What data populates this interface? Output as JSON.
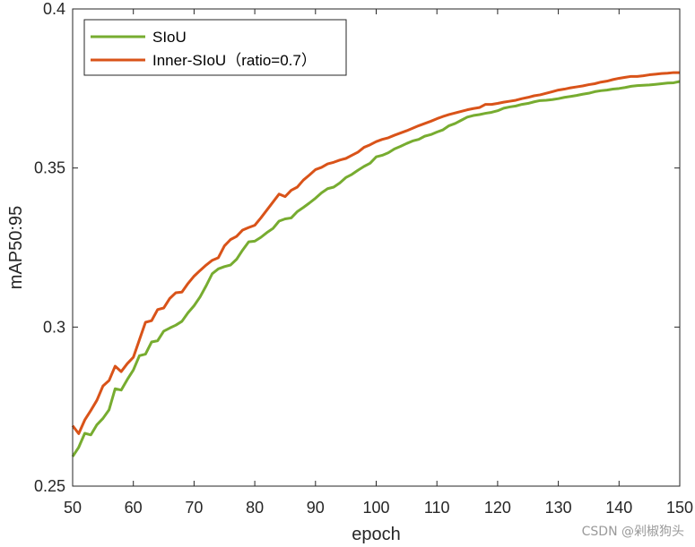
{
  "chart_data": {
    "type": "line",
    "title": "",
    "xlabel": "epoch",
    "ylabel": "mAP50:95",
    "xlim": [
      50,
      150
    ],
    "ylim": [
      0.25,
      0.4
    ],
    "xticks": [
      "50",
      "60",
      "70",
      "80",
      "90",
      "100",
      "110",
      "120",
      "130",
      "140",
      "150"
    ],
    "yticks": [
      "0.25",
      "0.3",
      "0.35",
      "0.4"
    ],
    "legend_position": "top-left",
    "grid": false,
    "x": [
      50,
      51,
      52,
      53,
      54,
      55,
      56,
      57,
      58,
      59,
      60,
      61,
      62,
      63,
      64,
      65,
      66,
      67,
      68,
      69,
      70,
      71,
      72,
      73,
      74,
      75,
      76,
      77,
      78,
      79,
      80,
      81,
      82,
      83,
      84,
      85,
      86,
      87,
      88,
      89,
      90,
      91,
      92,
      93,
      94,
      95,
      96,
      97,
      98,
      99,
      100,
      101,
      102,
      103,
      104,
      105,
      106,
      107,
      108,
      109,
      110,
      111,
      112,
      113,
      114,
      115,
      116,
      117,
      118,
      119,
      120,
      121,
      122,
      123,
      124,
      125,
      126,
      127,
      128,
      129,
      130,
      131,
      132,
      133,
      134,
      135,
      136,
      137,
      138,
      139,
      140,
      141,
      142,
      143,
      144,
      145,
      146,
      147,
      148,
      149,
      150
    ],
    "series": [
      {
        "name": "SIoU",
        "color": "#77ac30",
        "values": [
          0.2593,
          0.2622,
          0.2666,
          0.2661,
          0.2693,
          0.2713,
          0.274,
          0.2806,
          0.2802,
          0.2835,
          0.2865,
          0.291,
          0.2915,
          0.2953,
          0.2957,
          0.2987,
          0.2997,
          0.3006,
          0.3018,
          0.3045,
          0.3067,
          0.3095,
          0.313,
          0.3168,
          0.3183,
          0.319,
          0.3195,
          0.3213,
          0.3242,
          0.3268,
          0.327,
          0.3282,
          0.3297,
          0.331,
          0.3333,
          0.334,
          0.3343,
          0.3363,
          0.3376,
          0.339,
          0.3405,
          0.3422,
          0.3435,
          0.344,
          0.3453,
          0.347,
          0.348,
          0.3493,
          0.3505,
          0.3515,
          0.3535,
          0.354,
          0.3548,
          0.356,
          0.3568,
          0.3577,
          0.3585,
          0.359,
          0.36,
          0.3605,
          0.3613,
          0.362,
          0.3633,
          0.364,
          0.365,
          0.366,
          0.3665,
          0.3668,
          0.3672,
          0.3675,
          0.368,
          0.3688,
          0.3692,
          0.3695,
          0.37,
          0.3703,
          0.3708,
          0.3712,
          0.3713,
          0.3715,
          0.3718,
          0.3722,
          0.3725,
          0.3728,
          0.3732,
          0.3735,
          0.374,
          0.3743,
          0.3745,
          0.3748,
          0.375,
          0.3753,
          0.3757,
          0.3759,
          0.376,
          0.3761,
          0.3763,
          0.3765,
          0.3767,
          0.3768,
          0.3772
        ]
      },
      {
        "name": "Inner-SIoU（ratio=0.7）",
        "color": "#d95319",
        "values": [
          0.269,
          0.2665,
          0.2708,
          0.2738,
          0.277,
          0.2815,
          0.2832,
          0.2877,
          0.286,
          0.2885,
          0.2905,
          0.296,
          0.3015,
          0.302,
          0.3055,
          0.306,
          0.309,
          0.3108,
          0.311,
          0.3137,
          0.316,
          0.3178,
          0.3195,
          0.321,
          0.3218,
          0.3255,
          0.3275,
          0.3285,
          0.3305,
          0.3313,
          0.332,
          0.3343,
          0.3368,
          0.3393,
          0.3418,
          0.341,
          0.343,
          0.344,
          0.3462,
          0.3478,
          0.3495,
          0.3502,
          0.3513,
          0.3518,
          0.3525,
          0.353,
          0.354,
          0.355,
          0.3565,
          0.3573,
          0.3583,
          0.359,
          0.3595,
          0.3603,
          0.361,
          0.3617,
          0.3625,
          0.3633,
          0.364,
          0.3647,
          0.3655,
          0.3662,
          0.3668,
          0.3673,
          0.3678,
          0.3683,
          0.3687,
          0.369,
          0.37,
          0.37,
          0.3703,
          0.3707,
          0.371,
          0.3713,
          0.3718,
          0.3722,
          0.3727,
          0.373,
          0.3735,
          0.374,
          0.3745,
          0.3748,
          0.3752,
          0.3755,
          0.3758,
          0.3762,
          0.3765,
          0.377,
          0.3773,
          0.3778,
          0.3782,
          0.3785,
          0.3788,
          0.3788,
          0.379,
          0.3793,
          0.3795,
          0.3797,
          0.3798,
          0.38,
          0.38
        ]
      }
    ]
  },
  "watermark": "CSDN @剁椒狗头"
}
